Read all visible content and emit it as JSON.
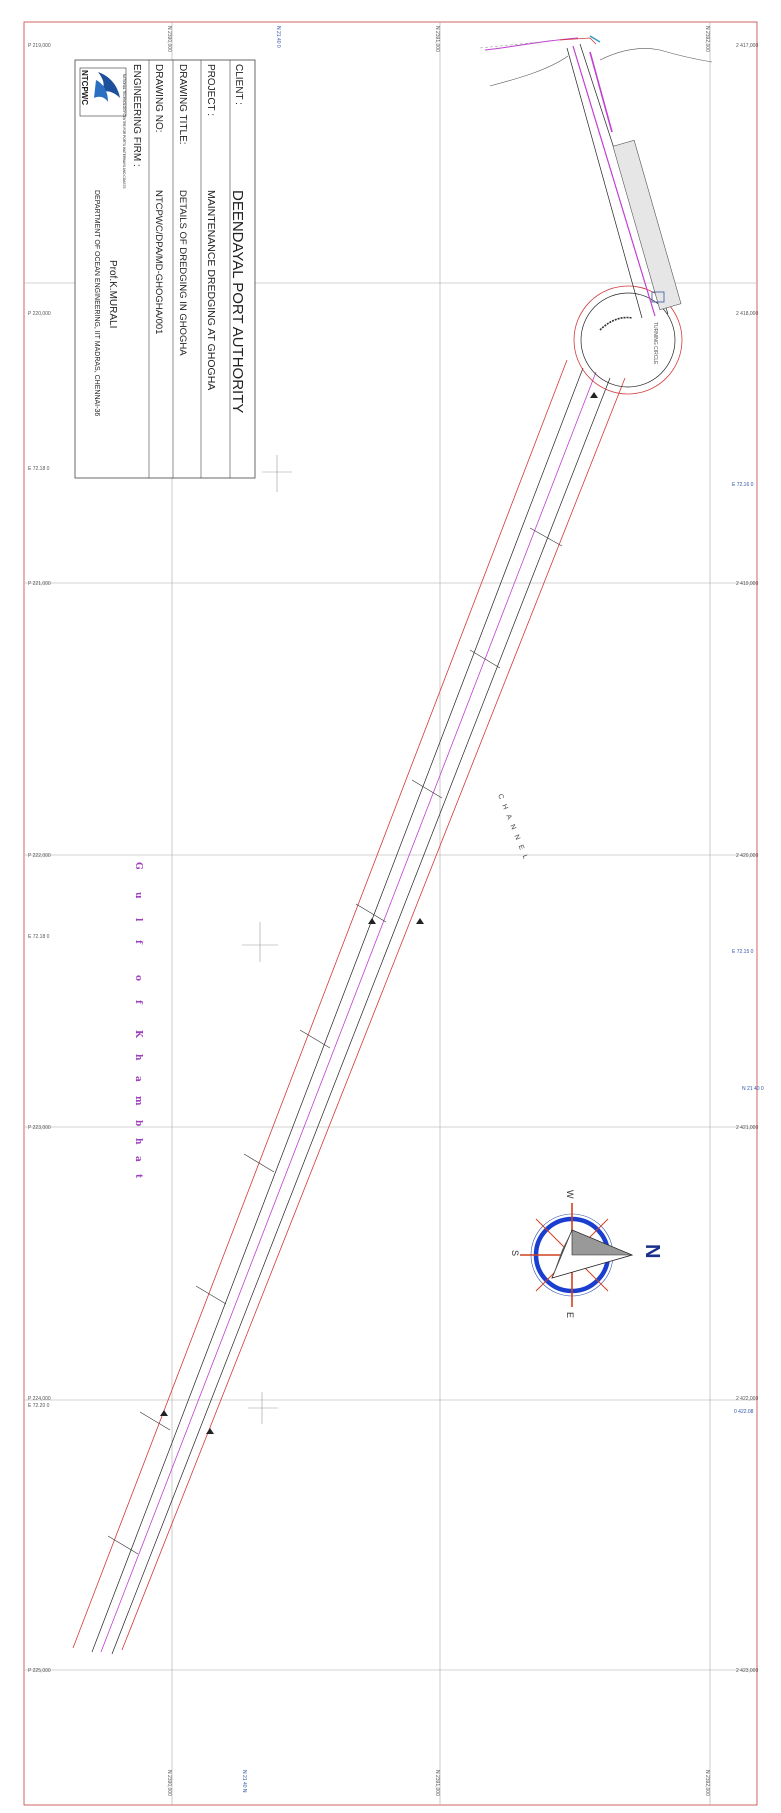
{
  "title_block": {
    "client_label": "CLIENT :",
    "client_value": "DEENDAYAL PORT AUTHORITY",
    "project_label": "PROJECT :",
    "project_value": "MAINTENANCE DREDGING AT GHOGHA",
    "drawing_title_label": "DRAWING TITLE:",
    "drawing_title_value": "DETAILS OF DREDGING IN GHOGHA",
    "drawing_no_label": "DRAWING NO:",
    "drawing_no_value": "NTCPWC/DPA/MD-GHOGHA/001",
    "engineering_firm_label": "ENGINEERING FIRM :",
    "logo_text": "NTCPWC",
    "logo_caption": "NATIONAL TECHNOLOGY CENTRE FOR PORTS WATERWAYS AND COASTS",
    "engineer_name": "Prof.K.MURALI",
    "engineer_department": "DEPARTMENT OF OCEAN ENGINEERING, IIT MADRAS, CHENNAI-36"
  },
  "water_body": {
    "name_letters": [
      "G",
      "u",
      "l",
      "f",
      "o",
      "f",
      "K",
      "h",
      "a",
      "m",
      "b",
      "h",
      "a",
      "t"
    ]
  },
  "channel": {
    "label": "CHANNEL"
  },
  "turning_circle": {
    "label": "TURNING CIRCLE"
  },
  "compass": {
    "north": "N",
    "south": "S",
    "east": "E",
    "west": "W"
  },
  "grid": {
    "left_labels": [
      "P 219,000",
      "P 220,000",
      "E 72.18 0",
      "P 221,000",
      "P 222,000",
      "E 72.18 0",
      "P 223,000",
      "P 224,000",
      "E 72.20 0",
      "P 225,000"
    ],
    "right_labels": [
      "2 417,000",
      "2 418,000",
      "E 72.16 0",
      "2 419,000",
      "2 420,000",
      "E 72.15 0",
      "N 21 40 0",
      "2 421,000",
      "2 422,000",
      "0 422.08",
      "2 423,000"
    ],
    "top_labels": [
      "N 2390,000",
      "N 21.40 0",
      "N 2391,000",
      "N 2392,000"
    ],
    "bottom_labels": [
      "N 2390,000",
      "N 21 40 N",
      "N 2391,000",
      "N 2392,000"
    ]
  }
}
